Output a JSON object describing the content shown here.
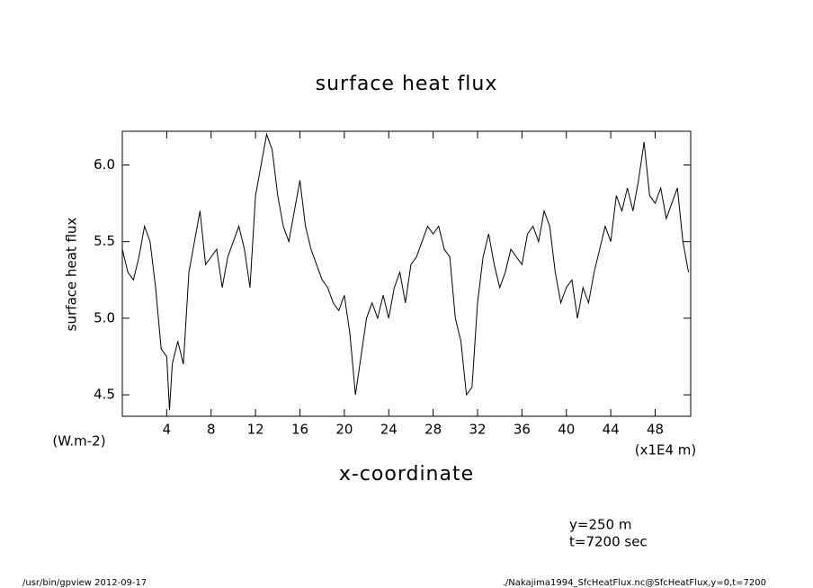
{
  "chart_data": {
    "type": "line",
    "title": "surface heat flux",
    "y_label": "surface heat flux",
    "y_units": "(W.m-2)",
    "x_label": "x-coordinate",
    "x_units": "(x1E4 m)",
    "annotations": [
      "y=250 m",
      "t=7200 sec"
    ],
    "footer_left": "/usr/bin/gpview  2012-09-17",
    "footer_right": "./Nakajima1994_SfcHeatFlux.nc@SfcHeatFlux,y=0,t=7200",
    "color": "#000000",
    "xlim": [
      0,
      51.2
    ],
    "ylim": [
      4.36,
      6.22
    ],
    "xticks": [
      4,
      8,
      12,
      16,
      20,
      24,
      28,
      32,
      36,
      40,
      44,
      48
    ],
    "yticks": [
      4.5,
      {
        "value": 5,
        "label": "5.0"
      },
      5.5,
      {
        "value": 6,
        "label": "6.0"
      }
    ],
    "x": [
      0,
      0.5,
      1,
      1.5,
      2,
      2.5,
      3,
      3.5,
      4,
      4.25,
      4.5,
      5,
      5.5,
      6,
      6.5,
      7,
      7.5,
      8,
      8.5,
      9,
      9.5,
      10,
      10.5,
      11,
      11.5,
      12,
      12.5,
      13,
      13.5,
      14,
      14.5,
      15,
      15.5,
      16,
      16.5,
      17,
      17.5,
      18,
      18.5,
      19,
      19.5,
      20,
      20.5,
      21,
      21.5,
      22,
      22.5,
      23,
      23.5,
      24,
      24.5,
      25,
      25.5,
      26,
      26.5,
      27,
      27.5,
      28,
      28.5,
      29,
      29.5,
      30,
      30.5,
      31,
      31.5,
      32,
      32.5,
      33,
      33.5,
      34,
      34.5,
      35,
      35.5,
      36,
      36.5,
      37,
      37.5,
      38,
      38.5,
      39,
      39.5,
      40,
      40.5,
      41,
      41.5,
      42,
      42.5,
      43,
      43.5,
      44,
      44.5,
      45,
      45.5,
      46,
      46.5,
      47,
      47.5,
      48,
      48.5,
      49,
      49.5,
      50,
      50.5,
      51
    ],
    "values": [
      5.45,
      5.3,
      5.25,
      5.4,
      5.6,
      5.5,
      5.2,
      4.8,
      4.75,
      4.4,
      4.7,
      4.85,
      4.7,
      5.3,
      5.5,
      5.7,
      5.35,
      5.4,
      5.45,
      5.2,
      5.4,
      5.5,
      5.6,
      5.45,
      5.2,
      5.8,
      6.0,
      6.2,
      6.1,
      5.8,
      5.6,
      5.5,
      5.7,
      5.9,
      5.6,
      5.45,
      5.35,
      5.25,
      5.2,
      5.1,
      5.05,
      5.15,
      4.9,
      4.5,
      4.75,
      5.0,
      5.1,
      5.0,
      5.15,
      5.0,
      5.2,
      5.3,
      5.1,
      5.35,
      5.4,
      5.5,
      5.6,
      5.55,
      5.6,
      5.45,
      5.4,
      5.0,
      4.85,
      4.5,
      4.55,
      5.1,
      5.4,
      5.55,
      5.35,
      5.2,
      5.3,
      5.45,
      5.4,
      5.35,
      5.55,
      5.6,
      5.5,
      5.7,
      5.6,
      5.3,
      5.1,
      5.2,
      5.25,
      5.0,
      5.2,
      5.1,
      5.3,
      5.45,
      5.6,
      5.5,
      5.8,
      5.7,
      5.85,
      5.7,
      5.9,
      6.15,
      5.8,
      5.75,
      5.85,
      5.65,
      5.75,
      5.85,
      5.5,
      5.3
    ]
  }
}
